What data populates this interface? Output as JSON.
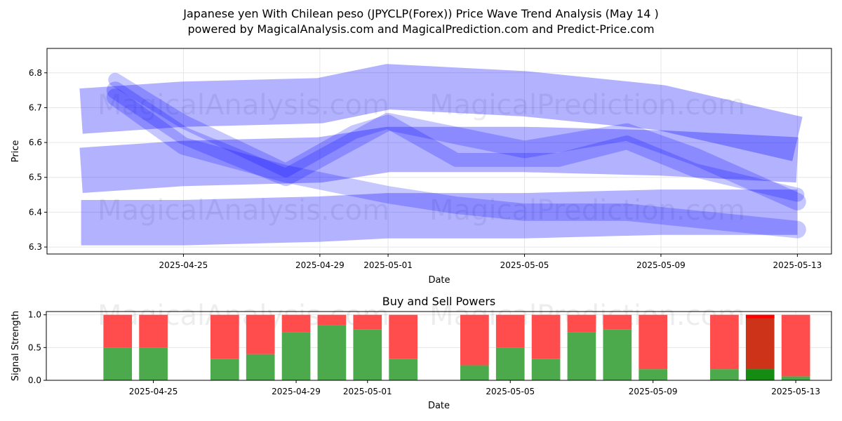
{
  "title": "Japanese yen With Chilean peso (JPYCLP(Forex)) Price Wave Trend Analysis (May 14 )",
  "subtitle": "powered by MagicalAnalysis.com and MagicalPrediction.com and Predict-Price.com",
  "watermarks": [
    "MagicalAnalysis.com",
    "MagicalPrediction.com"
  ],
  "chart_data": [
    {
      "type": "area",
      "name": "price-wave",
      "xlabel": "Date",
      "ylabel": "Price",
      "x_ticks": [
        "2025-04-25",
        "2025-04-29",
        "2025-05-01",
        "2025-05-05",
        "2025-05-09",
        "2025-05-13"
      ],
      "y_ticks": [
        6.3,
        6.4,
        6.5,
        6.6,
        6.7,
        6.8
      ],
      "xlim": [
        "2025-04-21",
        "2025-05-14"
      ],
      "ylim": [
        6.28,
        6.87
      ],
      "grid": true,
      "color": "#0000ff",
      "bands": [
        {
          "x": [
            "2025-04-22",
            "2025-04-25",
            "2025-04-29",
            "2025-05-01",
            "2025-05-05",
            "2025-05-09",
            "2025-05-13"
          ],
          "y": [
            6.69,
            6.71,
            6.72,
            6.76,
            6.74,
            6.7,
            6.61
          ],
          "width": 0.13
        },
        {
          "x": [
            "2025-04-22",
            "2025-04-25",
            "2025-04-29",
            "2025-05-01",
            "2025-05-05",
            "2025-05-09",
            "2025-05-13"
          ],
          "y": [
            6.52,
            6.54,
            6.55,
            6.58,
            6.58,
            6.57,
            6.55
          ],
          "width": 0.13
        },
        {
          "x": [
            "2025-04-22",
            "2025-04-25",
            "2025-04-29",
            "2025-05-01",
            "2025-05-05",
            "2025-05-09",
            "2025-05-13"
          ],
          "y": [
            6.37,
            6.37,
            6.38,
            6.39,
            6.39,
            6.4,
            6.4
          ],
          "width": 0.13
        },
        {
          "x": [
            "2025-04-23",
            "2025-04-25",
            "2025-04-28",
            "2025-05-01",
            "2025-05-03",
            "2025-05-05",
            "2025-05-08",
            "2025-05-10",
            "2025-05-13"
          ],
          "y": [
            6.75,
            6.62,
            6.5,
            6.66,
            6.62,
            6.58,
            6.63,
            6.56,
            6.43
          ],
          "width": 0.05
        },
        {
          "x": [
            "2025-04-23",
            "2025-04-25",
            "2025-04-28",
            "2025-05-01",
            "2025-05-03",
            "2025-05-05",
            "2025-05-08",
            "2025-05-10",
            "2025-05-13"
          ],
          "y": [
            6.73,
            6.59,
            6.51,
            6.45,
            6.42,
            6.4,
            6.4,
            6.38,
            6.35
          ],
          "width": 0.05
        },
        {
          "x": [
            "2025-04-23",
            "2025-04-25",
            "2025-04-28",
            "2025-04-30",
            "2025-05-01",
            "2025-05-03",
            "2025-05-06",
            "2025-05-08",
            "2025-05-10",
            "2025-05-13"
          ],
          "y": [
            6.78,
            6.66,
            6.52,
            6.63,
            6.66,
            6.55,
            6.55,
            6.6,
            6.52,
            6.45
          ],
          "width": 0.04
        }
      ]
    },
    {
      "type": "bar",
      "name": "buy-sell-powers",
      "title": "Buy and Sell Powers",
      "xlabel": "Date",
      "ylabel": "Signal Strength",
      "x_ticks": [
        "2025-04-25",
        "2025-04-29",
        "2025-05-01",
        "2025-05-05",
        "2025-05-09",
        "2025-05-13"
      ],
      "y_ticks": [
        0.0,
        0.5,
        1.0
      ],
      "ylim": [
        0,
        1.05
      ],
      "grid": true,
      "colors": {
        "buy": "#4caa4c",
        "sell": "#ff4c4c",
        "buy_highlight": "#148c14",
        "sell_highlight": "#cc3319"
      },
      "categories": [
        "2025-04-24",
        "2025-04-25",
        "2025-04-27",
        "2025-04-28",
        "2025-04-29",
        "2025-04-30",
        "2025-05-01",
        "2025-05-02",
        "2025-05-04",
        "2025-05-05",
        "2025-05-06",
        "2025-05-07",
        "2025-05-08",
        "2025-05-09",
        "2025-05-11",
        "2025-05-12",
        "2025-05-13"
      ],
      "buy": [
        0.5,
        0.5,
        0.33,
        0.4,
        0.73,
        0.84,
        0.78,
        0.33,
        0.23,
        0.5,
        0.33,
        0.73,
        0.78,
        0.17,
        0.17,
        0.17,
        0.06
      ],
      "sell": [
        0.5,
        0.5,
        0.67,
        0.6,
        0.27,
        0.16,
        0.22,
        0.67,
        0.77,
        0.5,
        0.67,
        0.27,
        0.22,
        0.83,
        0.83,
        0.83,
        0.94
      ],
      "highlight": [
        "2025-05-12"
      ]
    }
  ]
}
